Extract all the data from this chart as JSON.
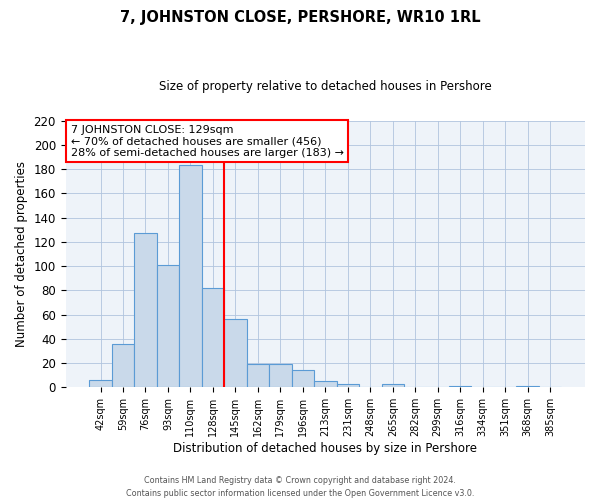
{
  "title": "7, JOHNSTON CLOSE, PERSHORE, WR10 1RL",
  "subtitle": "Size of property relative to detached houses in Pershore",
  "xlabel": "Distribution of detached houses by size in Pershore",
  "ylabel": "Number of detached properties",
  "bin_labels": [
    "42sqm",
    "59sqm",
    "76sqm",
    "93sqm",
    "110sqm",
    "128sqm",
    "145sqm",
    "162sqm",
    "179sqm",
    "196sqm",
    "213sqm",
    "231sqm",
    "248sqm",
    "265sqm",
    "282sqm",
    "299sqm",
    "316sqm",
    "334sqm",
    "351sqm",
    "368sqm",
    "385sqm"
  ],
  "bar_heights": [
    6,
    36,
    127,
    101,
    183,
    82,
    56,
    19,
    19,
    14,
    5,
    3,
    0,
    3,
    0,
    0,
    1,
    0,
    0,
    1,
    0
  ],
  "bar_color": "#c9d9ea",
  "bar_edge_color": "#5b9bd5",
  "vline_x_index": 5,
  "vline_color": "red",
  "ylim": [
    0,
    220
  ],
  "yticks": [
    0,
    20,
    40,
    60,
    80,
    100,
    120,
    140,
    160,
    180,
    200,
    220
  ],
  "annotation_text": "7 JOHNSTON CLOSE: 129sqm\n← 70% of detached houses are smaller (456)\n28% of semi-detached houses are larger (183) →",
  "annotation_box_color": "white",
  "annotation_box_edge_color": "red",
  "footer_line1": "Contains HM Land Registry data © Crown copyright and database right 2024.",
  "footer_line2": "Contains public sector information licensed under the Open Government Licence v3.0.",
  "background_color": "#eef3f9",
  "plot_bg_color": "white"
}
